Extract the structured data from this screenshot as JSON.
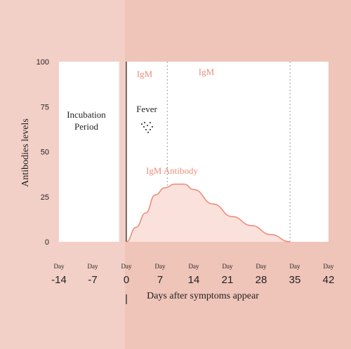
{
  "chart_data": {
    "type": "area",
    "xlabel": "Days after symptoms appear",
    "ylabel": "Antibodies levels",
    "ylim": [
      0,
      100
    ],
    "xlim": [
      -14,
      42
    ],
    "y_ticks": [
      "100",
      "75",
      "50",
      "25",
      "0"
    ],
    "x_ticks": [
      {
        "prefix": "Day",
        "label": "-14",
        "value": -14
      },
      {
        "prefix": "Day",
        "label": "-7",
        "value": -7
      },
      {
        "prefix": "Day",
        "label": "0",
        "value": 0
      },
      {
        "prefix": "Day",
        "label": "7",
        "value": 7
      },
      {
        "prefix": "Day",
        "label": "14",
        "value": 14
      },
      {
        "prefix": "Day",
        "label": "21",
        "value": 21
      },
      {
        "prefix": "Day",
        "label": "28",
        "value": 28
      },
      {
        "prefix": "Day",
        "label": "35",
        "value": 35
      },
      {
        "prefix": "Day",
        "label": "42",
        "value": 42
      }
    ],
    "series": [
      {
        "name": "IgM Antibody",
        "x": [
          0,
          2,
          4,
          6,
          8,
          10,
          12,
          14,
          18,
          22,
          26,
          30,
          34
        ],
        "y": [
          0,
          8,
          16,
          26,
          30,
          32,
          32,
          29,
          21,
          14,
          9,
          4,
          0
        ]
      }
    ],
    "regions": [
      {
        "label": "Incubation Period",
        "from": -14,
        "to": -1.5
      },
      {
        "label": "IgM",
        "from": 0,
        "to": 8.5
      },
      {
        "label": "IgM",
        "from": 8.5,
        "to": 34
      },
      {
        "label": "",
        "from": 34,
        "to": 42
      }
    ],
    "annotations": {
      "fever": "Fever",
      "region_igm_1": "IgM",
      "region_igm_2": "IgM",
      "incubation_line1": "Incubation",
      "incubation_line2": "Period",
      "series_label": "IgM Antibody"
    },
    "colors": {
      "left_band": "#f2d0c7",
      "right_band": "#efc4b9",
      "accent": "#ec8e7b",
      "fill": "#fbe1db",
      "text": "#231f20"
    }
  }
}
